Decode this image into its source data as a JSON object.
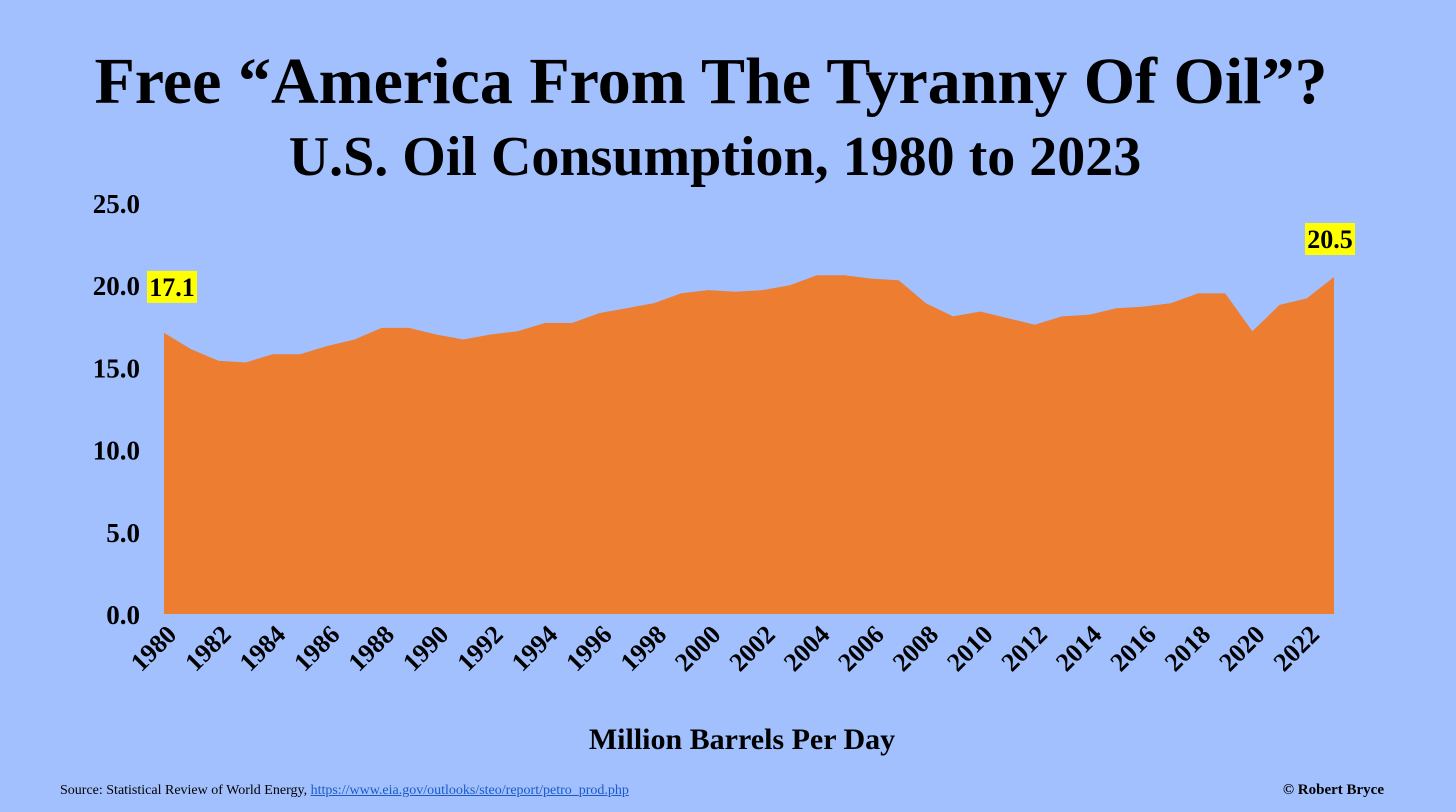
{
  "header": {
    "title": "Free “America From The Tyranny Of Oil”?",
    "subtitle": "U.S. Oil Consumption, 1980 to 2023"
  },
  "footer": {
    "source_label": "Source: Statistical Review of World Energy,",
    "source_link": "https://www.eia.gov/outlooks/steo/report/petro_prod.php",
    "copyright": "© Robert Bryce"
  },
  "colors": {
    "background": "#a1c0fd",
    "area_fill": "#ed7d31",
    "callout_background": "#ffff00"
  },
  "chart_data": {
    "type": "area",
    "title": "U.S. Oil Consumption, 1980 to 2023",
    "xlabel": "",
    "ylabel": "Million Barrels Per Day",
    "ylim": [
      0,
      25
    ],
    "yticks": [
      "0.0",
      "5.0",
      "10.0",
      "15.0",
      "20.0",
      "25.0"
    ],
    "xtick_labels": [
      "1980",
      "1982",
      "1984",
      "1986",
      "1988",
      "1990",
      "1992",
      "1994",
      "1996",
      "1998",
      "2000",
      "2002",
      "2004",
      "2006",
      "2008",
      "2010",
      "2012",
      "2014",
      "2016",
      "2018",
      "2020",
      "2022"
    ],
    "grid": false,
    "x": [
      1980,
      1981,
      1982,
      1983,
      1984,
      1985,
      1986,
      1987,
      1988,
      1989,
      1990,
      1991,
      1992,
      1993,
      1994,
      1995,
      1996,
      1997,
      1998,
      1999,
      2000,
      2001,
      2002,
      2003,
      2004,
      2005,
      2006,
      2007,
      2008,
      2009,
      2010,
      2011,
      2012,
      2013,
      2014,
      2015,
      2016,
      2017,
      2018,
      2019,
      2020,
      2021,
      2022,
      2023
    ],
    "values": [
      17.1,
      16.1,
      15.4,
      15.3,
      15.8,
      15.8,
      16.3,
      16.7,
      17.4,
      17.4,
      17.0,
      16.7,
      17.0,
      17.2,
      17.7,
      17.7,
      18.3,
      18.6,
      18.9,
      19.5,
      19.7,
      19.6,
      19.7,
      20.0,
      20.6,
      20.6,
      20.4,
      20.3,
      18.9,
      18.1,
      18.4,
      18.0,
      17.6,
      18.1,
      18.2,
      18.6,
      18.7,
      18.9,
      19.5,
      19.5,
      17.2,
      18.8,
      19.2,
      20.5
    ],
    "annotations": [
      {
        "label": "17.1",
        "x": 1980
      },
      {
        "label": "20.5",
        "x": 2023
      }
    ]
  }
}
